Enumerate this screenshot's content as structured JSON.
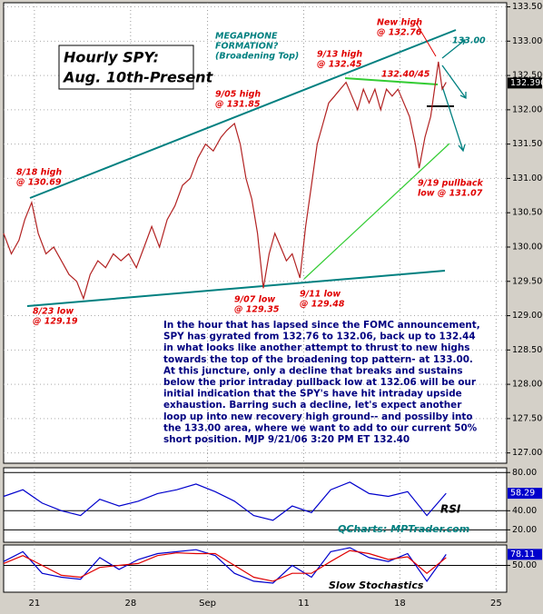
{
  "chart_data": [
    {
      "type": "line",
      "title": [
        "Hourly SPY:",
        "Aug. 10th-Present"
      ],
      "x": [
        5.4,
        5.8,
        6.2,
        6.5,
        6.86,
        7.2,
        7.6,
        8.0,
        8.4,
        8.8,
        9.2,
        9.55,
        9.9,
        10.3,
        10.7,
        11.1,
        11.5,
        11.9,
        12.3,
        12.7,
        13.1,
        13.5,
        13.9,
        14.3,
        14.7,
        15.1,
        15.5,
        15.9,
        16.3,
        16.7,
        17.0,
        17.4,
        17.7,
        18.0,
        18.3,
        18.6,
        18.9,
        19.2,
        19.5,
        19.8,
        20.1,
        20.4,
        20.8,
        21.1,
        21.4,
        21.7,
        22.0,
        22.3,
        22.6,
        22.9,
        23.2,
        23.5,
        23.8,
        24.1,
        24.4,
        24.7,
        25.0,
        25.3,
        25.6,
        25.9,
        26.2,
        26.5,
        26.8,
        27.0,
        27.3,
        27.6,
        28.0,
        28.2,
        28.4
      ],
      "values": [
        130.2,
        129.9,
        130.1,
        130.4,
        130.65,
        130.2,
        129.9,
        130.0,
        129.8,
        129.6,
        129.5,
        129.25,
        129.6,
        129.8,
        129.7,
        129.9,
        129.8,
        129.9,
        129.7,
        130.0,
        130.3,
        130.0,
        130.4,
        130.6,
        130.9,
        131.0,
        131.3,
        131.5,
        131.4,
        131.6,
        131.7,
        131.8,
        131.5,
        131.0,
        130.7,
        130.2,
        129.4,
        129.9,
        130.2,
        130.0,
        129.8,
        129.9,
        129.55,
        130.3,
        130.9,
        131.5,
        131.8,
        132.1,
        132.2,
        132.3,
        132.4,
        132.2,
        132.0,
        132.3,
        132.1,
        132.3,
        132.0,
        132.3,
        132.2,
        132.3,
        132.1,
        131.9,
        131.5,
        131.15,
        131.6,
        131.9,
        132.7,
        132.3,
        132.4
      ],
      "color": "#b22222",
      "xlim": [
        5.4,
        31.55
      ],
      "xticks": [
        {
          "value": 7,
          "label": "21"
        },
        {
          "value": 12,
          "label": "28"
        },
        {
          "value": 16,
          "label": "Sep"
        },
        {
          "value": 21,
          "label": "11"
        },
        {
          "value": 26,
          "label": "18"
        },
        {
          "value": 31,
          "label": "25"
        }
      ],
      "ylim": [
        126.85,
        133.56
      ],
      "yticks": [
        {
          "value": 127,
          "label": "127.0000"
        },
        {
          "value": 127.5,
          "label": "127.5000"
        },
        {
          "value": 128,
          "label": "128.0000"
        },
        {
          "value": 128.5,
          "label": "128.5000"
        },
        {
          "value": 129,
          "label": "129.0000"
        },
        {
          "value": 129.5,
          "label": "129.5000"
        },
        {
          "value": 130,
          "label": "130.0000"
        },
        {
          "value": 130.5,
          "label": "130.5000"
        },
        {
          "value": 131,
          "label": "131.0000"
        },
        {
          "value": 131.5,
          "label": "131.5000"
        },
        {
          "value": 132,
          "label": "132.0000"
        },
        {
          "value": 132.5,
          "label": "132.5000"
        },
        {
          "value": 133,
          "label": "133.0000"
        },
        {
          "value": 133.5,
          "label": "133.5000"
        }
      ],
      "grid": true,
      "last_value": {
        "value": 132.39,
        "label": "132.3900"
      },
      "annotations": [
        {
          "lines": [
            "MEGAPHONE",
            "FORMATION?",
            "(Broadening Top)"
          ],
          "color": "#008080"
        },
        {
          "lines": [
            "New high",
            "@ 132.76"
          ],
          "color": "#e00000"
        },
        {
          "lines": [
            "133.00"
          ],
          "color": "#008080"
        },
        {
          "lines": [
            "8/18 high",
            "@ 130.69"
          ],
          "color": "#e00000"
        },
        {
          "lines": [
            "9/05 high",
            "@ 131.85"
          ],
          "color": "#e00000"
        },
        {
          "lines": [
            "9/13 high",
            "@ 132.45"
          ],
          "color": "#e00000"
        },
        {
          "lines": [
            "132.40/45"
          ],
          "color": "#e00000"
        },
        {
          "lines": [
            "9/19 pullback",
            "low @ 131.07"
          ],
          "color": "#e00000"
        },
        {
          "lines": [
            "8/23 low",
            "@ 129.19"
          ],
          "color": "#e00000"
        },
        {
          "lines": [
            "9/07 low",
            "@ 129.35"
          ],
          "color": "#e00000"
        },
        {
          "lines": [
            "9/11 low",
            "@ 129.48"
          ],
          "color": "#e00000"
        }
      ],
      "commentary": [
        "In the hour that has lapsed since the FOMC announcement,",
        "SPY has gyrated from 132.76 to 132.06, back up to 132.44",
        "in what looks like another attempt to thrust to new highs",
        "towards the top of the broadening top pattern- at 133.00.",
        "At this juncture, only a decline that breaks and sustains",
        "below the prior intraday pullback low at 132.06 will be our",
        "initial indication that the SPY's have hit intraday upside",
        "exhaustion. Barring such a decline, let's expect another",
        "loop up into new recovery high ground-- and possilby into",
        "the 133.00 area, where we want to add to our current 50%",
        "short position.  MJP  9/21/06  3:20  PM ET 132.40"
      ]
    },
    {
      "type": "line",
      "label": "RSI",
      "source": "QCharts: MPTrader.com",
      "x": [
        5.4,
        6.4,
        7.4,
        8.4,
        9.4,
        10.4,
        11.4,
        12.4,
        13.4,
        14.4,
        15.4,
        16.4,
        17.4,
        18.4,
        19.4,
        20.4,
        21.4,
        22.4,
        23.4,
        24.4,
        25.4,
        26.4,
        27.4,
        28.4
      ],
      "values": [
        55,
        62,
        48,
        40,
        35,
        52,
        45,
        50,
        58,
        62,
        68,
        60,
        50,
        35,
        30,
        45,
        38,
        62,
        70,
        58,
        55,
        60,
        35,
        58.29
      ],
      "color": "#0000cc",
      "ylim": [
        7,
        85
      ],
      "yticks": [
        {
          "value": 80,
          "label": "80.00"
        },
        {
          "value": 40,
          "label": "40.00"
        },
        {
          "value": 20,
          "label": "20.00"
        }
      ],
      "last_value": {
        "value": 58.29,
        "label": "58.29"
      }
    },
    {
      "type": "line",
      "label": "Slow Stochastics",
      "x": [
        5.4,
        6.4,
        7.4,
        8.4,
        9.4,
        10.4,
        11.4,
        12.4,
        13.4,
        14.4,
        15.4,
        16.4,
        17.4,
        18.4,
        19.4,
        20.4,
        21.4,
        22.4,
        23.4,
        24.4,
        25.4,
        26.4,
        27.4,
        28.4
      ],
      "series": [
        {
          "color": "#0000cc",
          "values": [
            60,
            85,
            30,
            20,
            15,
            70,
            40,
            65,
            80,
            85,
            90,
            75,
            30,
            10,
            5,
            50,
            20,
            85,
            95,
            70,
            60,
            80,
            10,
            78.11
          ]
        },
        {
          "color": "#e00000",
          "values": [
            55,
            75,
            50,
            25,
            20,
            45,
            50,
            55,
            75,
            82,
            80,
            80,
            50,
            20,
            10,
            30,
            30,
            60,
            88,
            80,
            65,
            72,
            30,
            70
          ]
        }
      ],
      "ylim": [
        -18,
        102
      ],
      "yticks": [
        {
          "value": 50,
          "label": "50.00"
        }
      ],
      "last_value": {
        "value": 78.11,
        "label": "78.11"
      }
    }
  ]
}
